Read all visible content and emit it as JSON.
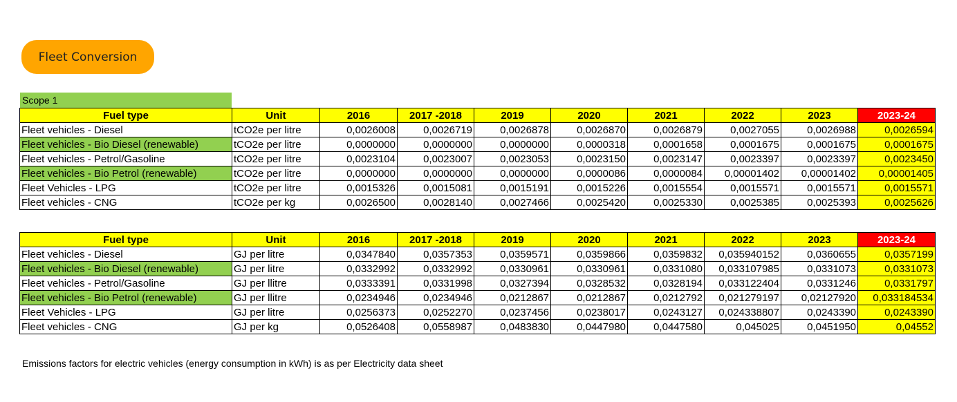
{
  "title": "Fleet Conversion",
  "scope_label": "Scope 1",
  "headers": [
    "Fuel type",
    "Unit",
    "2016",
    "2017 -2018",
    "2019",
    "2020",
    "2021",
    "2022",
    "2023",
    "2023-24"
  ],
  "table_co2": {
    "rows": [
      {
        "fuel": "Fleet vehicles - Diesel",
        "green": false,
        "unit": "tCO2e per litre",
        "values": [
          "0,0026008",
          "0,0026719",
          "0,0026878",
          "0,0026870",
          "0,0026879",
          "0,0027055",
          "0,0026988",
          "0,0026594"
        ]
      },
      {
        "fuel": "Fleet vehicles - Bio Diesel (renewable)",
        "green": true,
        "unit": "tCO2e per litre",
        "values": [
          "0,0000000",
          "0,0000000",
          "0,0000000",
          "0,0000318",
          "0,0001658",
          "0,0001675",
          "0,0001675",
          "0,0001675"
        ]
      },
      {
        "fuel": "Fleet vehicles - Petrol/Gasoline",
        "green": false,
        "unit": "tCO2e per litre",
        "values": [
          "0,0023104",
          "0,0023007",
          "0,0023053",
          "0,0023150",
          "0,0023147",
          "0,0023397",
          "0,0023397",
          "0,0023450"
        ]
      },
      {
        "fuel": "Fleet vehicles - Bio Petrol (renewable)",
        "green": true,
        "unit": "tCO2e per litre",
        "values": [
          "0,0000000",
          "0,0000000",
          "0,0000000",
          "0,0000086",
          "0,0000084",
          "0,00001402",
          "0,00001402",
          "0,00001405"
        ]
      },
      {
        "fuel": "Fleet Vehicles - LPG",
        "green": false,
        "unit": "tCO2e per litre",
        "values": [
          "0,0015326",
          "0,0015081",
          "0,0015191",
          "0,0015226",
          "0,0015554",
          "0,0015571",
          "0,0015571",
          "0,0015571"
        ]
      },
      {
        "fuel": "Fleet vehicles - CNG",
        "green": false,
        "unit": "tCO2e per kg",
        "values": [
          "0,0026500",
          "0,0028140",
          "0,0027466",
          "0,0025420",
          "0,0025330",
          "0,0025385",
          "0,0025393",
          "0,0025626"
        ]
      }
    ]
  },
  "table_gj": {
    "rows": [
      {
        "fuel": "Fleet vehicles - Diesel",
        "green": false,
        "unit": "GJ per litre",
        "values": [
          "0,0347840",
          "0,0357353",
          "0,0359571",
          "0,0359866",
          "0,0359832",
          "0,035940152",
          "0,0360655",
          "0,0357199"
        ]
      },
      {
        "fuel": "Fleet vehicles - Bio Diesel (renewable)",
        "green": true,
        "unit": "GJ per litre",
        "values": [
          "0,0332992",
          "0,0332992",
          "0,0330961",
          "0,0330961",
          "0,0331080",
          "0,033107985",
          "0,0331073",
          "0,0331073"
        ]
      },
      {
        "fuel": "Fleet vehicles - Petrol/Gasoline",
        "green": false,
        "unit": "GJ per llitre",
        "values": [
          "0,0333391",
          "0,0331998",
          "0,0327394",
          "0,0328532",
          "0,0328194",
          "0,033122404",
          "0,0331246",
          "0,0331797"
        ]
      },
      {
        "fuel": "Fleet vehicles - Bio Petrol (renewable)",
        "green": true,
        "unit": "GJ per llitre",
        "values": [
          "0,0234946",
          "0,0234946",
          "0,0212867",
          "0,0212867",
          "0,0212792",
          "0,021279197",
          "0,02127920",
          "0,033184534"
        ]
      },
      {
        "fuel": "Fleet Vehicles - LPG",
        "green": false,
        "unit": "GJ per litre",
        "values": [
          "0,0256373",
          "0,0252270",
          "0,0237456",
          "0,0238017",
          "0,0243127",
          "0,024338807",
          "0,0243390",
          "0,0243390"
        ]
      },
      {
        "fuel": "Fleet vehicles - CNG",
        "green": false,
        "unit": "GJ per kg",
        "values": [
          "0,0526408",
          "0,0558987",
          "0,0483830",
          "0,0447980",
          "0,0447580",
          "0,045025",
          "0,0451950",
          "0,04552"
        ]
      }
    ]
  },
  "note": "Emissions factors for electric vehicles (energy consumption in kWh) is as per Electricity data sheet",
  "colors": {
    "title_pill": "#FFA500",
    "header_fill": "#FFFF00",
    "highlight_header": "#FF0000",
    "renewable_row": "#92D050",
    "scope_fill": "#92D050"
  }
}
